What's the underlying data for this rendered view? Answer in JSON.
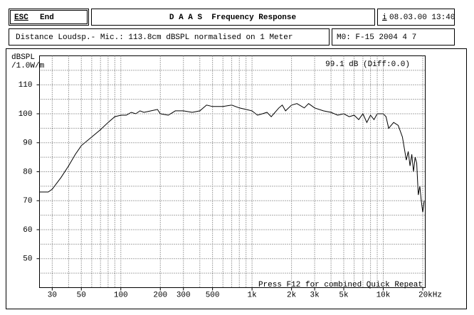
{
  "header": {
    "esc": "ESC",
    "end": "End",
    "title": "D A A S  Frequency Response",
    "info_key": "i",
    "datetime": "08.03.00 13:40"
  },
  "subheader": {
    "description": "Distance Loudsp.- Mic.: 113.8cm dBSPL normalised on 1 Meter",
    "model": "M0: F-15 2004 4 7"
  },
  "chart_data": {
    "type": "line",
    "xscale": "log",
    "ylabel": "dBSPL",
    "ylabel_unit": "/1.0W/m",
    "annotation_top": "99.1 dB (Diff:0.0)",
    "annotation_bottom": "Press F12 for combined Quick Repeat",
    "xlim": [
      24,
      20900
    ],
    "ylim": [
      40,
      120
    ],
    "xticks": [
      30,
      50,
      100,
      200,
      300,
      500,
      {
        "value": 1000,
        "label": "1k"
      },
      {
        "value": 2000,
        "label": "2k"
      },
      {
        "value": 3000,
        "label": "3k"
      },
      {
        "value": 5000,
        "label": "5k"
      },
      {
        "value": 10000,
        "label": "10k"
      },
      {
        "value": 20000,
        "label": "20kHz"
      }
    ],
    "yticks": [
      50,
      60,
      70,
      80,
      90,
      100,
      110
    ],
    "xgrid": [
      30,
      40,
      50,
      60,
      70,
      80,
      90,
      100,
      200,
      300,
      400,
      500,
      600,
      700,
      800,
      900,
      1000,
      2000,
      3000,
      4000,
      5000,
      6000,
      7000,
      8000,
      9000,
      10000,
      20000
    ],
    "ygrid": [
      45,
      50,
      55,
      60,
      65,
      70,
      75,
      80,
      85,
      90,
      95,
      100,
      105,
      110,
      115
    ],
    "grid": true,
    "series": [
      {
        "name": "Frequency Response",
        "color": "#000000",
        "x": [
          24,
          28,
          30,
          35,
          40,
          45,
          50,
          60,
          70,
          80,
          90,
          100,
          110,
          120,
          130,
          140,
          150,
          170,
          190,
          200,
          230,
          260,
          300,
          350,
          400,
          450,
          500,
          600,
          700,
          800,
          900,
          1000,
          1100,
          1200,
          1300,
          1400,
          1600,
          1700,
          1800,
          2000,
          2200,
          2500,
          2700,
          3000,
          3500,
          4000,
          4500,
          5000,
          5500,
          6000,
          6500,
          7000,
          7500,
          8000,
          8500,
          9000,
          10000,
          10500,
          11000,
          12000,
          13000,
          14000,
          15000,
          15500,
          16000,
          16500,
          17000,
          17500,
          18000,
          18500,
          19000,
          19500,
          20000,
          20500
        ],
        "values": [
          73,
          73,
          74,
          78,
          82,
          86,
          89,
          92,
          94.5,
          97,
          99,
          99.5,
          99.5,
          100.5,
          100,
          101,
          100.5,
          101,
          101.5,
          100,
          99.5,
          101,
          101,
          100.5,
          101,
          103,
          102.5,
          102.5,
          103,
          102,
          101.5,
          101,
          99.5,
          100,
          100.5,
          99,
          102,
          103,
          101,
          103,
          103.5,
          102,
          103.5,
          102,
          101,
          100.5,
          99.5,
          100,
          99,
          99.5,
          98,
          100,
          97,
          99.5,
          98,
          100,
          100,
          99,
          95,
          97,
          96,
          92,
          84,
          87,
          82,
          86,
          80,
          85,
          83,
          72,
          75,
          70,
          66,
          70
        ]
      }
    ]
  }
}
